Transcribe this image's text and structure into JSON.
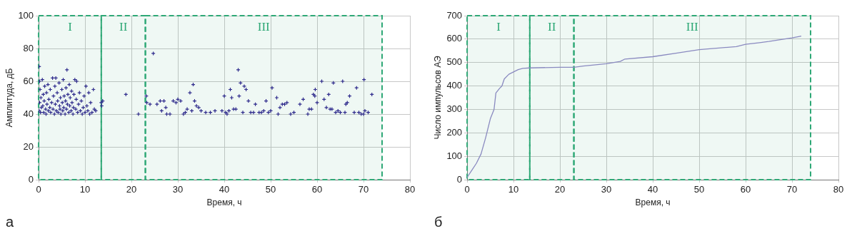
{
  "chart_data": [
    {
      "type": "scatter",
      "xlabel": "Время, ч",
      "ylabel": "Амплитуда, дБ",
      "annotations": [
        "а"
      ],
      "xlim": [
        0,
        80
      ],
      "xticks": [
        0,
        10,
        20,
        30,
        40,
        50,
        60,
        70,
        80
      ],
      "ylim": [
        0,
        100
      ],
      "yticks": [
        0,
        20,
        40,
        60,
        80,
        100
      ],
      "grid": true,
      "marker": "cross",
      "bands": [
        {
          "axis": "x",
          "from": 0,
          "to": 13.5,
          "label": "I",
          "color": "#2ea876"
        },
        {
          "axis": "x",
          "from": 13.5,
          "to": 23,
          "label": "II",
          "color": "#2ea876"
        },
        {
          "axis": "x",
          "from": 23,
          "to": 74,
          "label": "III",
          "color": "#2ea876"
        }
      ],
      "series": [
        {
          "color": "#2e2a8c",
          "x": [
            0.1,
            0.2,
            0.3,
            0.2,
            0.1,
            0.4,
            0.5,
            0.6,
            0.8,
            0.9,
            1,
            1.1,
            1.2,
            1.3,
            1.5,
            1.6,
            1.7,
            1.8,
            2,
            2.1,
            2.2,
            2.4,
            2.5,
            2.6,
            2.8,
            3,
            3.1,
            3.2,
            3.4,
            3.5,
            3.6,
            3.7,
            3.8,
            4,
            4.1,
            4.2,
            4.4,
            4.5,
            4.6,
            4.7,
            4.8,
            5,
            5.1,
            5.2,
            5.3,
            5.4,
            5.5,
            5.7,
            5.8,
            5.9,
            6,
            6.1,
            6.2,
            6.3,
            6.5,
            6.6,
            6.7,
            6.8,
            7,
            7.1,
            7.2,
            7.4,
            7.5,
            7.6,
            7.8,
            8,
            8.1,
            8.2,
            8.4,
            8.6,
            8.8,
            9,
            9.2,
            9.4,
            9.6,
            9.8,
            10,
            10.2,
            10.4,
            10.6,
            10.8,
            11,
            11.2,
            11.5,
            11.8,
            12,
            12.3,
            13.5,
            13.6,
            13.8,
            18.8,
            21.5,
            23.2,
            23.3,
            24,
            24.7,
            25.5,
            26.2,
            26.5,
            27,
            27.4,
            27.6,
            28.3,
            29,
            29.6,
            30,
            30.6,
            31.2,
            31.6,
            32,
            32.6,
            33,
            33.3,
            33.6,
            34,
            34.5,
            35,
            36,
            37,
            38,
            39.5,
            40,
            40.3,
            40.6,
            41,
            41.3,
            41.6,
            42,
            42.5,
            43,
            43.2,
            43.5,
            44,
            44.3,
            44.7,
            45.2,
            45.7,
            46.3,
            46.7,
            47.5,
            48,
            48.5,
            49,
            49.5,
            50,
            50.3,
            51.3,
            51.6,
            52,
            52.5,
            53,
            53.5,
            54.3,
            55,
            56.3,
            57,
            58,
            58.3,
            58.8,
            59.2,
            59.5,
            59.6,
            60,
            61,
            61.5,
            62,
            62.5,
            62.8,
            63.2,
            63.5,
            64,
            64.5,
            65,
            65.5,
            66,
            66.2,
            66.5,
            67,
            68,
            68.5,
            69,
            69.5,
            70,
            70.1,
            70.3,
            71,
            71.8
          ],
          "values": [
            69,
            60,
            55,
            47,
            42,
            41,
            50,
            44,
            61,
            45,
            52,
            41,
            48,
            57,
            43,
            40,
            53,
            46,
            58,
            42,
            49,
            44,
            55,
            41,
            47,
            62,
            43,
            51,
            40,
            57,
            46,
            62,
            42,
            53,
            48,
            41,
            59,
            45,
            43,
            50,
            40,
            55,
            47,
            42,
            61,
            44,
            51,
            40,
            48,
            56,
            43,
            67,
            46,
            52,
            41,
            58,
            45,
            50,
            42,
            54,
            47,
            40,
            44,
            52,
            61,
            43,
            49,
            60,
            41,
            46,
            53,
            42,
            48,
            40,
            44,
            51,
            41,
            57,
            45,
            42,
            53,
            40,
            47,
            41,
            55,
            43,
            42,
            47,
            45,
            48,
            52,
            40,
            51,
            47,
            46,
            77,
            46,
            48,
            42,
            48,
            44,
            40,
            40,
            48,
            47,
            49,
            48,
            40,
            41,
            43,
            53,
            42,
            58,
            48,
            45,
            44,
            42,
            41,
            41,
            42,
            42,
            51,
            41,
            40,
            42,
            55,
            50,
            43,
            43,
            67,
            51,
            59,
            41,
            57,
            55,
            48,
            41,
            41,
            46,
            41,
            41,
            42,
            48,
            41,
            42,
            56,
            50,
            40,
            44,
            46,
            46,
            47,
            40,
            41,
            46,
            49,
            40,
            43,
            43,
            52,
            51,
            55,
            47,
            60,
            49,
            44,
            52,
            43,
            43,
            59,
            41,
            42,
            41,
            60,
            41,
            46,
            47,
            51,
            41,
            56,
            41,
            40,
            40,
            61,
            42,
            41,
            52
          ]
        }
      ]
    },
    {
      "type": "line",
      "xlabel": "Время, ч",
      "ylabel": "Число импульсов АЭ",
      "annotations": [
        "б"
      ],
      "xlim": [
        0,
        80
      ],
      "xticks": [
        0,
        10,
        20,
        30,
        40,
        50,
        60,
        70,
        80
      ],
      "ylim": [
        0,
        700
      ],
      "yticks": [
        0,
        100,
        200,
        300,
        400,
        500,
        600,
        700
      ],
      "grid": true,
      "marker": "none",
      "bands": [
        {
          "axis": "x",
          "from": 0,
          "to": 13.5,
          "label": "I",
          "color": "#2ea876"
        },
        {
          "axis": "x",
          "from": 13.5,
          "to": 23,
          "label": "II",
          "color": "#2ea876"
        },
        {
          "axis": "x",
          "from": 23,
          "to": 74,
          "label": "III",
          "color": "#2ea876"
        }
      ],
      "series": [
        {
          "color": "#8a8ac0",
          "x": [
            0,
            1,
            2,
            3,
            4,
            5,
            5.8,
            6.2,
            7,
            7.5,
            8,
            9,
            10,
            11,
            12,
            13.5,
            20,
            23,
            25,
            30,
            33,
            34,
            40,
            45,
            50,
            58,
            60,
            63,
            65,
            70,
            72
          ],
          "values": [
            10,
            40,
            70,
            110,
            180,
            260,
            300,
            370,
            390,
            400,
            430,
            450,
            460,
            470,
            475,
            477,
            480,
            480,
            485,
            495,
            505,
            515,
            525,
            540,
            555,
            568,
            578,
            585,
            590,
            605,
            613
          ]
        }
      ]
    }
  ]
}
